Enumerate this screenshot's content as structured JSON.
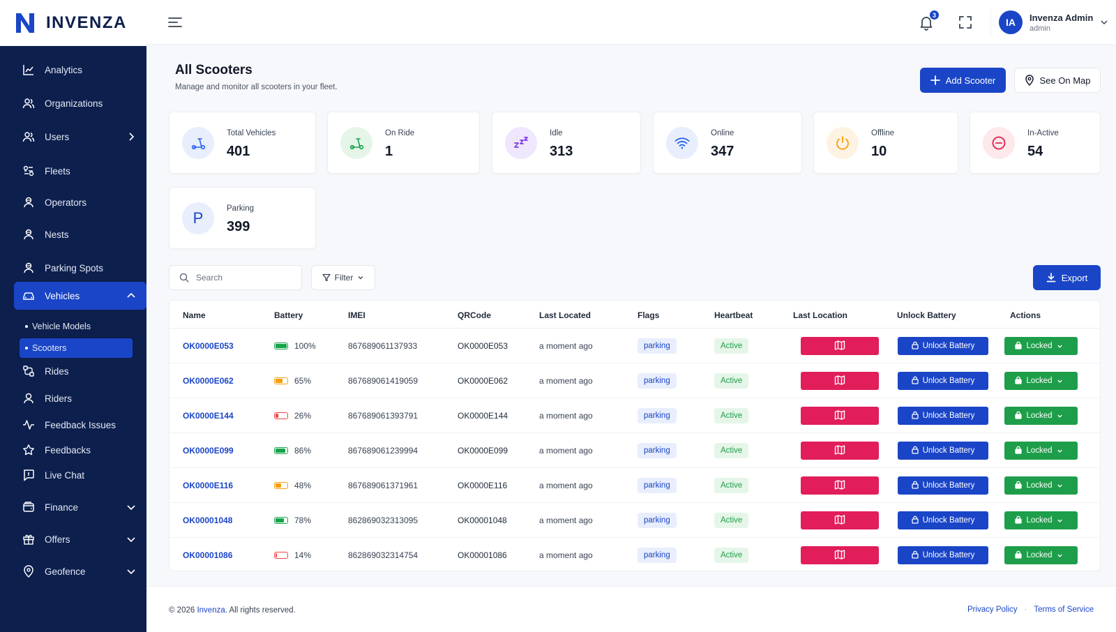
{
  "brand": {
    "name": "INVENZA",
    "logo_icon": "n-logo-icon"
  },
  "sidebar": {
    "items": [
      {
        "label": "Analytics",
        "icon": "chart-line-icon"
      },
      {
        "label": "Organizations",
        "icon": "users-icon"
      },
      {
        "label": "Users",
        "icon": "users-icon",
        "chevron": "right"
      },
      {
        "label": "Fleets",
        "icon": "fleet-icon"
      },
      {
        "label": "Operators",
        "icon": "operator-icon"
      },
      {
        "label": "Nests",
        "icon": "operator-icon"
      },
      {
        "label": "Parking Spots",
        "icon": "operator-icon"
      },
      {
        "label": "Vehicles",
        "icon": "car-icon",
        "chevron": "up",
        "active": true
      },
      {
        "label": "Rides",
        "icon": "rides-icon"
      },
      {
        "label": "Riders",
        "icon": "user-icon"
      },
      {
        "label": "Feedback Issues",
        "icon": "activity-icon"
      },
      {
        "label": "Feedbacks",
        "icon": "star-icon"
      },
      {
        "label": "Live Chat",
        "icon": "chat-icon"
      },
      {
        "label": "Finance",
        "icon": "wallet-icon",
        "chevron": "down"
      },
      {
        "label": "Offers",
        "icon": "gift-icon",
        "chevron": "down"
      },
      {
        "label": "Geofence",
        "icon": "map-pin-icon",
        "chevron": "down"
      }
    ],
    "vehicle_subitems": [
      {
        "label": "Vehicle Models"
      },
      {
        "label": "Scooters",
        "active": true
      }
    ]
  },
  "header": {
    "notification_count": "3",
    "user_initials": "IA",
    "user_name": "Invenza Admin",
    "user_role": "admin"
  },
  "page": {
    "title": "All Scooters",
    "subtitle": "Manage and monitor all scooters in your fleet.",
    "add_button": "Add Scooter",
    "map_button": "See On Map"
  },
  "stats": [
    {
      "label": "Total Vehicles",
      "value": "401",
      "icon": "scooter-icon",
      "color": "#2563eb",
      "bg": "#e8eefc"
    },
    {
      "label": "On Ride",
      "value": "1",
      "icon": "scooter-icon",
      "color": "#16a34a",
      "bg": "#e5f6e8"
    },
    {
      "label": "Idle",
      "value": "313",
      "icon": "sleep-icon",
      "color": "#7c3aed",
      "bg": "#efe7fd"
    },
    {
      "label": "Online",
      "value": "347",
      "icon": "wifi-icon",
      "color": "#2563eb",
      "bg": "#e8eefc"
    },
    {
      "label": "Offline",
      "value": "10",
      "icon": "power-icon",
      "color": "#f59e0b",
      "bg": "#fef3e2"
    },
    {
      "label": "In-Active",
      "value": "54",
      "icon": "minus-circle-icon",
      "color": "#e11d48",
      "bg": "#fde8ec"
    },
    {
      "label": "Parking",
      "value": "399",
      "icon": "parking-icon",
      "color": "#1a45c7",
      "bg": "#e8eefc",
      "glyph": "P"
    }
  ],
  "toolbar": {
    "search_placeholder": "Search",
    "filter_label": "Filter",
    "export_label": "Export"
  },
  "table": {
    "columns": [
      "Name",
      "Battery",
      "IMEI",
      "QRCode",
      "Last Located",
      "Flags",
      "Heartbeat",
      "Last Location",
      "Unlock Battery",
      "Actions"
    ],
    "rows": [
      {
        "name": "OK0000E053",
        "battery": "100%",
        "battery_level": 100,
        "battery_color": "#16a34a",
        "imei": "867689061137933",
        "qrcode": "OK0000E053",
        "last_located": "a moment ago",
        "flag": "parking",
        "heartbeat": "Active",
        "unlock": "Unlock Battery",
        "action": "Locked"
      },
      {
        "name": "OK0000E062",
        "battery": "65%",
        "battery_level": 65,
        "battery_color": "#f59e0b",
        "imei": "867689061419059",
        "qrcode": "OK0000E062",
        "last_located": "a moment ago",
        "flag": "parking",
        "heartbeat": "Active",
        "unlock": "Unlock Battery",
        "action": "Locked"
      },
      {
        "name": "OK0000E144",
        "battery": "26%",
        "battery_level": 26,
        "battery_color": "#ef4444",
        "imei": "867689061393791",
        "qrcode": "OK0000E144",
        "last_located": "a moment ago",
        "flag": "parking",
        "heartbeat": "Active",
        "unlock": "Unlock Battery",
        "action": "Locked"
      },
      {
        "name": "OK0000E099",
        "battery": "86%",
        "battery_level": 86,
        "battery_color": "#16a34a",
        "imei": "867689061239994",
        "qrcode": "OK0000E099",
        "last_located": "a moment ago",
        "flag": "parking",
        "heartbeat": "Active",
        "unlock": "Unlock Battery",
        "action": "Locked"
      },
      {
        "name": "OK0000E116",
        "battery": "48%",
        "battery_level": 48,
        "battery_color": "#f59e0b",
        "imei": "867689061371961",
        "qrcode": "OK0000E116",
        "last_located": "a moment ago",
        "flag": "parking",
        "heartbeat": "Active",
        "unlock": "Unlock Battery",
        "action": "Locked"
      },
      {
        "name": "OK00001048",
        "battery": "78%",
        "battery_level": 78,
        "battery_color": "#16a34a",
        "imei": "862869032313095",
        "qrcode": "OK00001048",
        "last_located": "a moment ago",
        "flag": "parking",
        "heartbeat": "Active",
        "unlock": "Unlock Battery",
        "action": "Locked"
      },
      {
        "name": "OK00001086",
        "battery": "14%",
        "battery_level": 14,
        "battery_color": "#ef4444",
        "imei": "862869032314754",
        "qrcode": "OK00001086",
        "last_located": "a moment ago",
        "flag": "parking",
        "heartbeat": "Active",
        "unlock": "Unlock Battery",
        "action": "Locked"
      }
    ]
  },
  "footer": {
    "copyright_prefix": "© 2026",
    "brand": "Invenza.",
    "copyright_suffix": "All rights reserved.",
    "privacy": "Privacy Policy",
    "separator": "·",
    "terms": "Terms of Service"
  },
  "colors": {
    "sidebar_bg": "#0c1f4d",
    "accent": "#1a45c7",
    "map_button": "#e11d5a",
    "locked_button": "#1e9e4a"
  }
}
